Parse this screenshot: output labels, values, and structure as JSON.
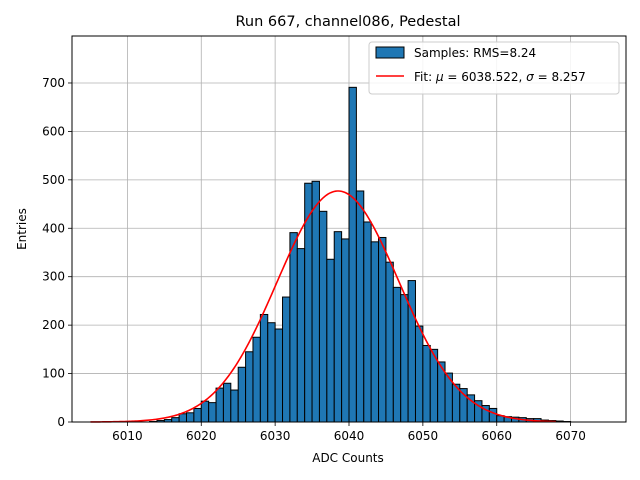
{
  "chart_data": {
    "type": "bar",
    "title": "Run 667, channel086, Pedestal",
    "xlabel": "ADC Counts",
    "ylabel": "Entries",
    "xlim": [
      6002.5,
      6077.5
    ],
    "ylim": [
      0,
      797
    ],
    "xticks": [
      6010,
      6020,
      6030,
      6040,
      6050,
      6060,
      6070
    ],
    "yticks": [
      0,
      100,
      200,
      300,
      400,
      500,
      600,
      700
    ],
    "grid": true,
    "legend_position": "top-right",
    "histogram": {
      "name": "Samples: RMS=8.24",
      "color": "#1f77b4",
      "bin_start": 6010,
      "bin_width": 1,
      "counts": [
        0,
        0,
        0,
        1,
        3,
        5,
        9,
        17,
        19,
        28,
        43,
        40,
        70,
        80,
        66,
        113,
        145,
        175,
        222,
        205,
        192,
        258,
        391,
        358,
        493,
        497,
        435,
        336,
        393,
        378,
        691,
        477,
        413,
        372,
        381,
        330,
        278,
        263,
        292,
        198,
        158,
        150,
        124,
        101,
        78,
        69,
        56,
        44,
        34,
        28,
        13,
        11,
        10,
        9,
        7,
        7,
        4,
        3,
        2,
        1
      ]
    },
    "fit": {
      "name": "Fit: μ = 6038.522, σ = 8.257",
      "color": "#ff0000",
      "mu": 6038.522,
      "sigma": 8.257,
      "amplitude": 477,
      "x_range": [
        6005,
        6068
      ]
    }
  },
  "legend": {
    "items": [
      {
        "label_prefix": "Samples: RMS=8.24",
        "kind": "patch",
        "color": "#1f77b4"
      },
      {
        "label_prefix": "Fit: ",
        "mu_symbol": "μ",
        "mid": " = 6038.522, ",
        "sigma_symbol": "σ",
        "suffix": " = 8.257",
        "kind": "line",
        "color": "#ff0000"
      }
    ]
  }
}
